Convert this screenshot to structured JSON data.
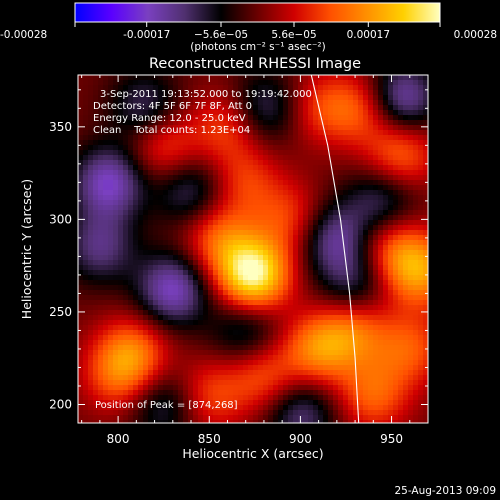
{
  "colorbar": {
    "min": -0.00028,
    "max": 0.00028,
    "tick_labels": [
      "-0.00028",
      "-0.00017",
      "−5.6e−05",
      "5.6e−05",
      "0.00017",
      "0.00028"
    ],
    "tick_values": [
      -0.00028,
      -0.00017,
      -5.6e-05,
      5.6e-05,
      0.00017,
      0.00028
    ],
    "units_label": "(photons cm⁻² s⁻¹ asec⁻²)"
  },
  "chart_data": {
    "type": "heatmap",
    "title": "Reconstructed RHESSI Image",
    "xlabel": "Heliocentric X (arcsec)",
    "ylabel": "Heliocentric Y (arcsec)",
    "xlim": [
      778,
      970
    ],
    "ylim": [
      190,
      378
    ],
    "xticks": [
      800,
      850,
      900,
      950
    ],
    "yticks": [
      200,
      250,
      300,
      350
    ],
    "colormap": [
      "#0000ff",
      "#5a00ff",
      "#7a40c0",
      "#503070",
      "#000000",
      "#6a0000",
      "#d00000",
      "#ff5000",
      "#ff9000",
      "#ffd000",
      "#ffffc0"
    ],
    "peak": [
      874,
      268
    ],
    "sources": [
      {
        "x": 874,
        "y": 270,
        "value": 0.00028
      },
      {
        "x": 855,
        "y": 290,
        "value": 0.00012
      },
      {
        "x": 910,
        "y": 230,
        "value": 0.00015
      },
      {
        "x": 930,
        "y": 240,
        "value": 0.00012
      },
      {
        "x": 880,
        "y": 215,
        "value": 0.00011
      },
      {
        "x": 850,
        "y": 205,
        "value": 0.0001
      },
      {
        "x": 955,
        "y": 335,
        "value": 0.00013
      },
      {
        "x": 935,
        "y": 360,
        "value": 0.00011
      },
      {
        "x": 965,
        "y": 272,
        "value": 0.00017
      },
      {
        "x": 950,
        "y": 285,
        "value": 0.0001
      },
      {
        "x": 808,
        "y": 228,
        "value": 0.00013
      },
      {
        "x": 800,
        "y": 215,
        "value": 0.0001
      },
      {
        "x": 825,
        "y": 340,
        "value": 0.00011
      },
      {
        "x": 860,
        "y": 350,
        "value": 0.0001
      },
      {
        "x": 895,
        "y": 300,
        "value": 0.0001
      },
      {
        "x": 940,
        "y": 205,
        "value": 0.00012
      },
      {
        "x": 960,
        "y": 230,
        "value": 0.00011
      },
      {
        "x": 870,
        "y": 320,
        "value": 9e-05
      },
      {
        "x": 912,
        "y": 360,
        "value": 9e-05
      },
      {
        "x": 830,
        "y": 262,
        "value": -0.00017
      },
      {
        "x": 795,
        "y": 320,
        "value": -0.00017
      },
      {
        "x": 790,
        "y": 285,
        "value": -0.00012
      },
      {
        "x": 918,
        "y": 290,
        "value": -0.00014
      },
      {
        "x": 955,
        "y": 365,
        "value": -0.00017
      },
      {
        "x": 900,
        "y": 195,
        "value": -0.00012
      },
      {
        "x": 840,
        "y": 315,
        "value": -0.00011
      },
      {
        "x": 880,
        "y": 360,
        "value": -0.00011
      },
      {
        "x": 815,
        "y": 360,
        "value": -0.00011
      },
      {
        "x": 945,
        "y": 310,
        "value": -0.00011
      },
      {
        "x": 825,
        "y": 200,
        "value": -0.0001
      },
      {
        "x": 870,
        "y": 240,
        "value": -0.0001
      },
      {
        "x": 930,
        "y": 265,
        "value": -0.0001
      }
    ],
    "limb": [
      [
        906,
        378
      ],
      [
        915,
        340
      ],
      [
        922,
        300
      ],
      [
        927,
        260
      ],
      [
        930,
        225
      ],
      [
        932,
        190
      ]
    ]
  },
  "info": {
    "line1": "3-Sep-2011 19:13:52.000 to 19:19:42.000",
    "line2": "Detectors: 4F 5F 6F 7F 8F, Att 0",
    "line3": "Energy Range: 12.0 - 25.0 keV",
    "line4": "Clean    Total counts: 1.23E+04",
    "peak_label": "Position of Peak = [874,268]"
  },
  "footer": {
    "timestamp": "25-Aug-2013 09:09"
  }
}
